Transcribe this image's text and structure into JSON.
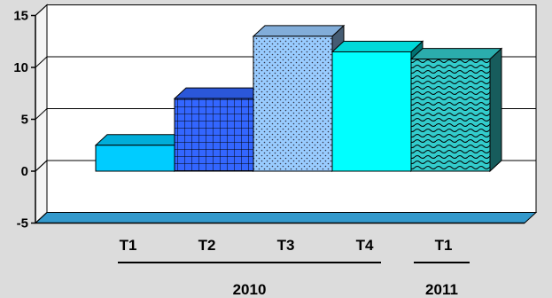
{
  "chart_data": {
    "type": "bar",
    "categories": [
      "T1",
      "T2",
      "T3",
      "T4",
      "T1"
    ],
    "values": [
      2.5,
      7,
      13,
      11.5,
      10.8
    ],
    "ylim": [
      -5,
      15
    ],
    "yticks": [
      -5,
      0,
      5,
      10,
      15
    ],
    "grid": true,
    "legend": "none",
    "bar_colors": [
      "#00ccff",
      "#3366ff",
      "#99ccff",
      "#00ffff",
      "#33cccc"
    ],
    "bar_patterns": [
      "solid",
      "grid",
      "dots",
      "solid",
      "waves"
    ],
    "groups": [
      {
        "label": "2010",
        "categories": [
          "T1",
          "T2",
          "T3",
          "T4"
        ]
      },
      {
        "label": "2011",
        "categories": [
          "T1"
        ]
      }
    ],
    "title": "",
    "xlabel": "",
    "ylabel": ""
  },
  "colors": {
    "plot_background": "#dcdcdc",
    "wall": "#ffffff",
    "floor": "#3399cc",
    "axis": "#000000"
  }
}
